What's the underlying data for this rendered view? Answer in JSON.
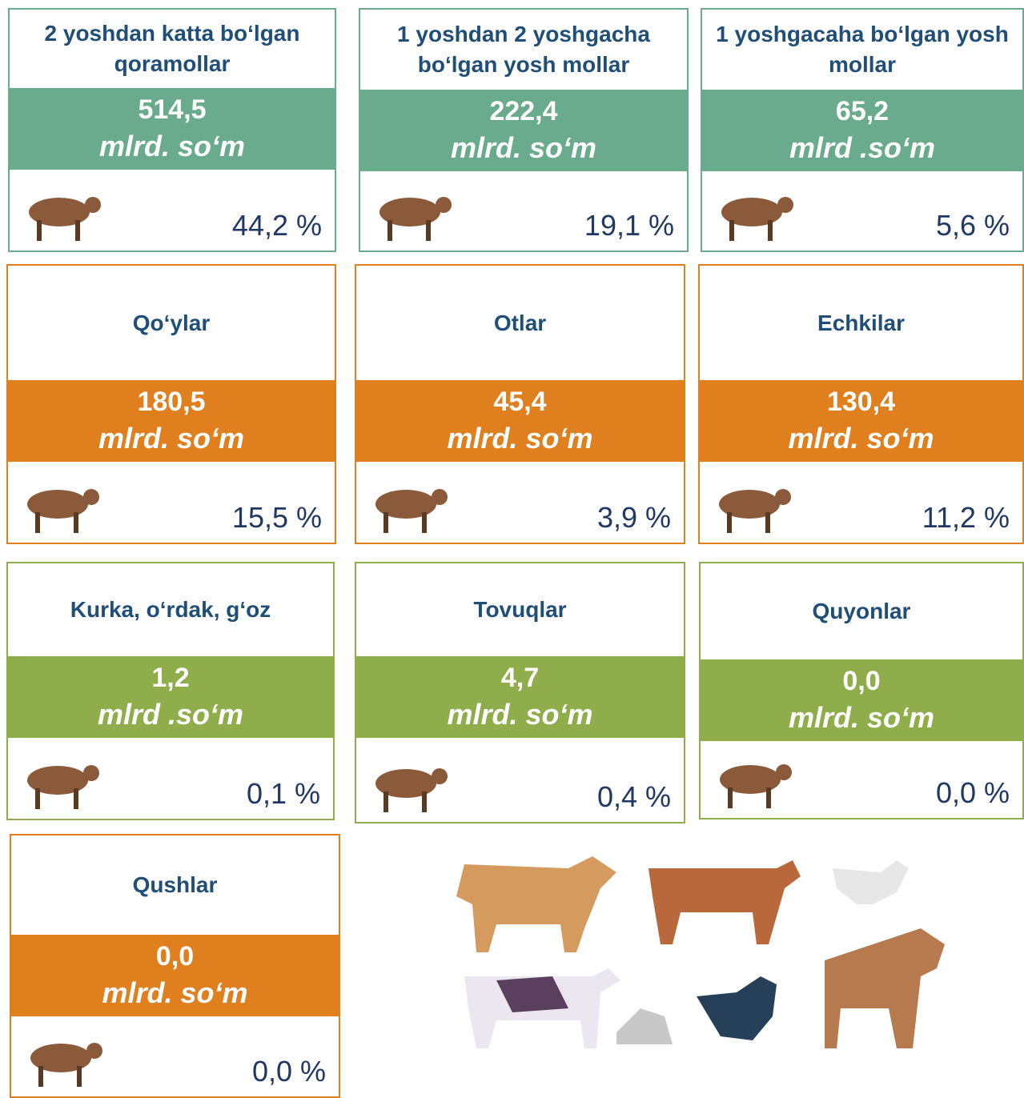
{
  "cards": [
    {
      "title": "2 yoshdan katta bo‘lgan qoramollar",
      "value": "514,5",
      "unit": "mlrd. so‘m",
      "percent": "44,2 %"
    },
    {
      "title": "1 yoshdan 2 yoshgacha bo‘lgan yosh mollar",
      "value": "222,4",
      "unit": "mlrd. so‘m",
      "percent": "19,1 %"
    },
    {
      "title": "1 yoshgacaha bo‘lgan yosh mollar",
      "value": "65,2",
      "unit": "mlrd .so‘m",
      "percent": "5,6 %"
    },
    {
      "title": "Qo‘ylar",
      "value": "180,5",
      "unit": "mlrd. so‘m",
      "percent": "15,5 %"
    },
    {
      "title": "Otlar",
      "value": "45,4",
      "unit": "mlrd. so‘m",
      "percent": "3,9 %"
    },
    {
      "title": "Echkilar",
      "value": "130,4",
      "unit": "mlrd. so‘m",
      "percent": "11,2 %"
    },
    {
      "title": "Kurka, o‘rdak, g‘oz",
      "value": "1,2",
      "unit": "mlrd .so‘m",
      "percent": "0,1 %"
    },
    {
      "title": "Tovuqlar",
      "value": "4,7",
      "unit": "mlrd. so‘m",
      "percent": "0,4 %"
    },
    {
      "title": "Quyonlar",
      "value": "0,0",
      "unit": "mlrd. so‘m",
      "percent": "0,0 %"
    },
    {
      "title": "Qushlar",
      "value": "0,0",
      "unit": "mlrd. so‘m",
      "percent": "0,0 %"
    }
  ]
}
